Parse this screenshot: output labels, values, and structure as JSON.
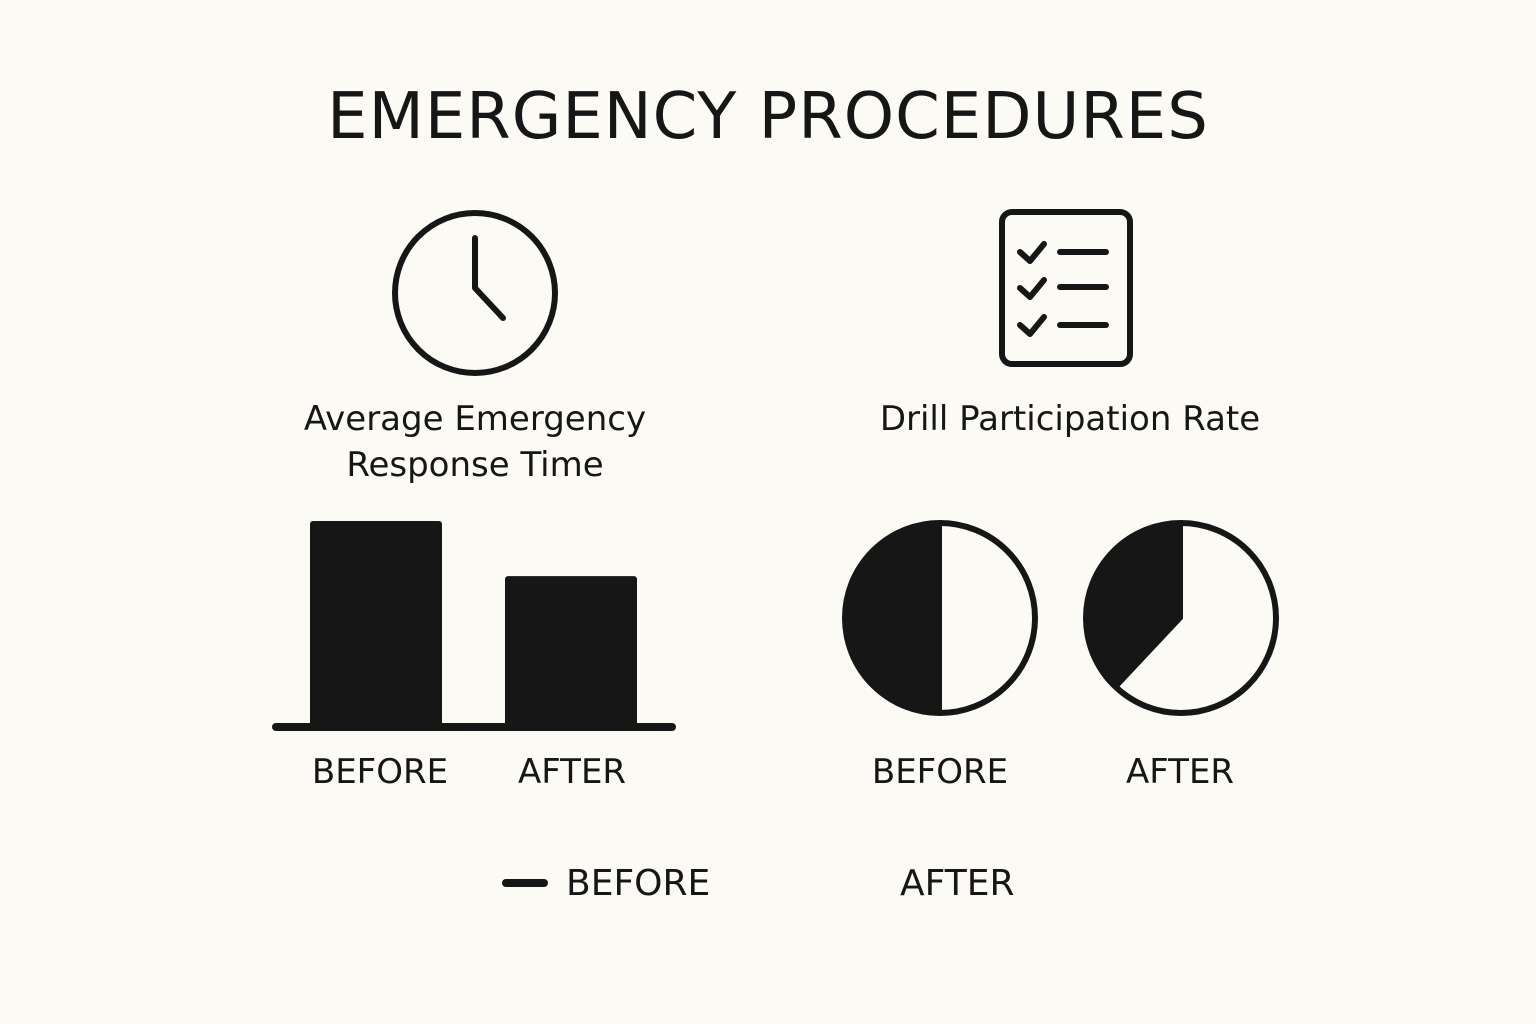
{
  "title": "EMERGENCY PROCEDURES",
  "colors": {
    "ink": "#161616",
    "background": "#fcfaf5"
  },
  "icons": {
    "response_time": "clock-icon",
    "participation": "checklist-icon"
  },
  "chart_data": [
    {
      "type": "bar",
      "title_lines": [
        "Average Emergency",
        "Response Time"
      ],
      "categories": [
        "BEFORE",
        "AFTER"
      ],
      "values": [
        1.0,
        0.73
      ],
      "ylim": [
        0,
        1
      ],
      "grid": false
    },
    {
      "type": "pie",
      "title": "Drill Participation Rate",
      "categories": [
        "BEFORE",
        "AFTER"
      ],
      "values": [
        0.5,
        0.38
      ]
    }
  ],
  "legend": [
    {
      "label": "BEFORE",
      "swatch": true
    },
    {
      "label": "AFTER",
      "swatch": false
    }
  ]
}
